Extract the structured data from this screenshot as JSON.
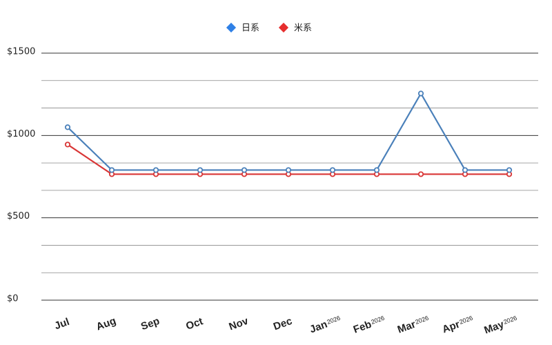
{
  "chart_data": {
    "type": "line",
    "categories": [
      "Jul",
      "Aug",
      "Sep",
      "Oct",
      "Nov",
      "Dec",
      "Jan",
      "Feb",
      "Mar",
      "Apr",
      "May"
    ],
    "category_years": [
      null,
      null,
      null,
      null,
      null,
      null,
      "2026",
      "2026",
      "2026",
      "2026",
      "2026"
    ],
    "series": [
      {
        "name": "日系",
        "color": "#4a80ba",
        "legend_color": "#2f80e6",
        "values": [
          1050,
          790,
          790,
          790,
          790,
          790,
          790,
          790,
          1255,
          790,
          790
        ]
      },
      {
        "name": "米系",
        "color": "#d93636",
        "legend_color": "#e62e2e",
        "values": [
          945,
          765,
          765,
          765,
          765,
          765,
          765,
          765,
          765,
          765,
          765
        ]
      }
    ],
    "ylim": [
      0,
      1500
    ],
    "yticks": [
      {
        "value": 0,
        "label": "$0"
      },
      {
        "value": 500,
        "label": "$500"
      },
      {
        "value": 1000,
        "label": "$1000"
      },
      {
        "value": 1500,
        "label": "$1500"
      }
    ],
    "grid": true,
    "grid_subdivisions": 3,
    "legend": "top"
  }
}
